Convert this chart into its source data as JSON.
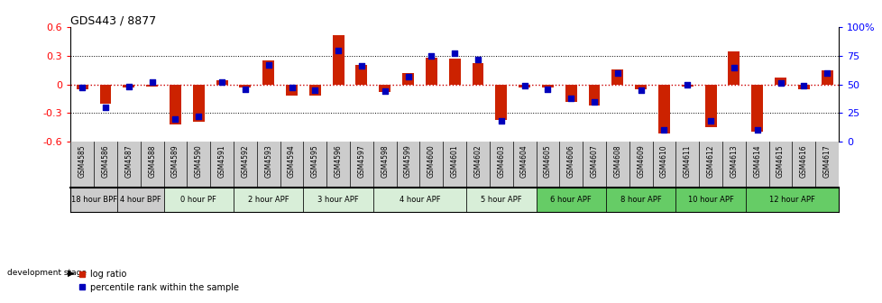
{
  "title": "GDS443 / 8877",
  "samples": [
    "GSM4585",
    "GSM4586",
    "GSM4587",
    "GSM4588",
    "GSM4589",
    "GSM4590",
    "GSM4591",
    "GSM4592",
    "GSM4593",
    "GSM4594",
    "GSM4595",
    "GSM4596",
    "GSM4597",
    "GSM4598",
    "GSM4599",
    "GSM4600",
    "GSM4601",
    "GSM4602",
    "GSM4603",
    "GSM4604",
    "GSM4605",
    "GSM4606",
    "GSM4607",
    "GSM4608",
    "GSM4609",
    "GSM4610",
    "GSM4611",
    "GSM4612",
    "GSM4613",
    "GSM4614",
    "GSM4615",
    "GSM4616",
    "GSM4617"
  ],
  "log_ratio": [
    -0.05,
    -0.2,
    -0.03,
    -0.02,
    -0.42,
    -0.39,
    0.04,
    -0.03,
    0.25,
    -0.12,
    -0.12,
    0.52,
    0.2,
    -0.08,
    0.12,
    0.28,
    0.27,
    0.22,
    -0.37,
    -0.03,
    -0.03,
    -0.18,
    -0.22,
    0.16,
    -0.05,
    -0.52,
    -0.02,
    -0.45,
    0.35,
    -0.5,
    0.07,
    -0.05,
    0.15
  ],
  "percentile": [
    47,
    30,
    48,
    52,
    20,
    22,
    52,
    46,
    67,
    47,
    45,
    80,
    66,
    44,
    57,
    75,
    77,
    72,
    18,
    49,
    46,
    38,
    35,
    60,
    45,
    10,
    50,
    18,
    65,
    10,
    51,
    49,
    60
  ],
  "groups": [
    {
      "label": "18 hour BPF",
      "start": 0,
      "end": 2,
      "color": "#cccccc"
    },
    {
      "label": "4 hour BPF",
      "start": 2,
      "end": 4,
      "color": "#cccccc"
    },
    {
      "label": "0 hour PF",
      "start": 4,
      "end": 7,
      "color": "#d8eed8"
    },
    {
      "label": "2 hour APF",
      "start": 7,
      "end": 10,
      "color": "#d8eed8"
    },
    {
      "label": "3 hour APF",
      "start": 10,
      "end": 13,
      "color": "#d8eed8"
    },
    {
      "label": "4 hour APF",
      "start": 13,
      "end": 17,
      "color": "#d8eed8"
    },
    {
      "label": "5 hour APF",
      "start": 17,
      "end": 20,
      "color": "#d8eed8"
    },
    {
      "label": "6 hour APF",
      "start": 20,
      "end": 23,
      "color": "#66cc66"
    },
    {
      "label": "8 hour APF",
      "start": 23,
      "end": 26,
      "color": "#66cc66"
    },
    {
      "label": "10 hour APF",
      "start": 26,
      "end": 29,
      "color": "#66cc66"
    },
    {
      "label": "12 hour APF",
      "start": 29,
      "end": 33,
      "color": "#66cc66"
    }
  ],
  "ylim": [
    -0.6,
    0.6
  ],
  "y2lim": [
    0,
    100
  ],
  "bar_color": "#cc2200",
  "dot_color": "#0000bb",
  "zero_line_color": "#cc0000",
  "bg_color": "#ffffff",
  "gsm_bg": "#cccccc"
}
